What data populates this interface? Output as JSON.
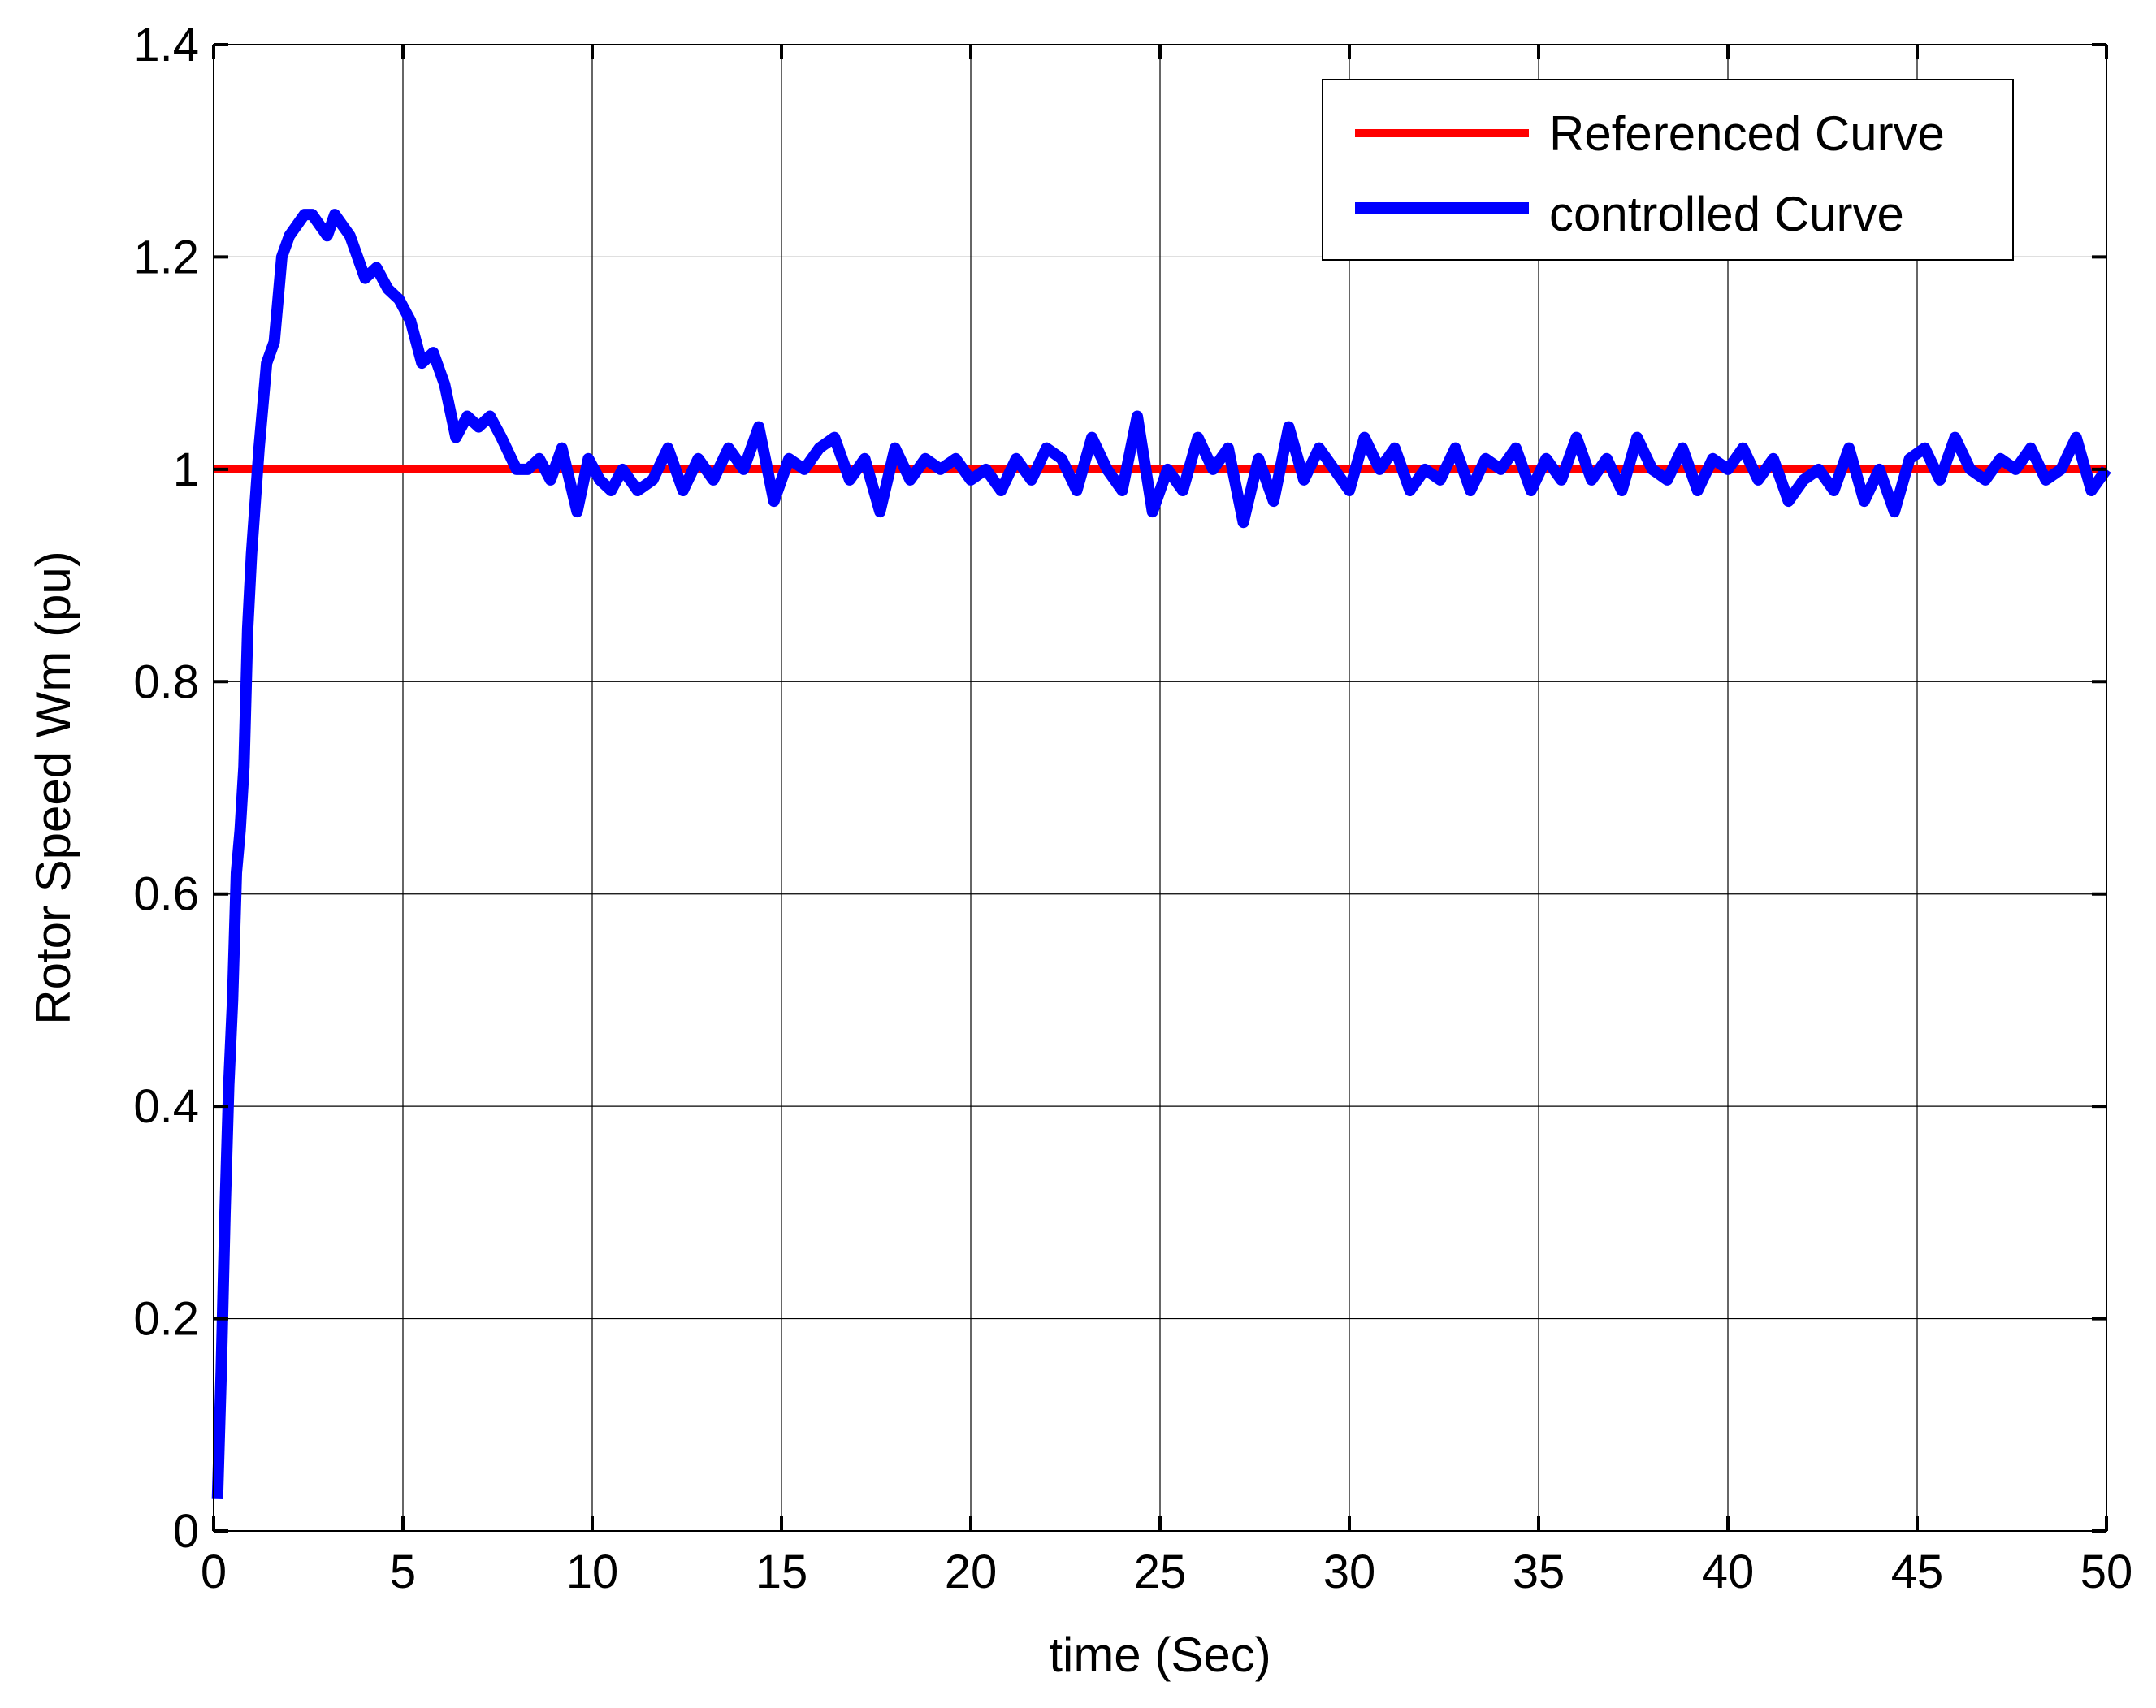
{
  "chart_data": {
    "type": "line",
    "xlabel": "time (Sec)",
    "ylabel": "Rotor Speed Wm (pu)",
    "xlim": [
      0,
      50
    ],
    "ylim": [
      0,
      1.4
    ],
    "xticks": [
      0,
      5,
      10,
      15,
      20,
      25,
      30,
      35,
      40,
      45,
      50
    ],
    "yticks": [
      0,
      0.2,
      0.4,
      0.6,
      0.8,
      1,
      1.2,
      1.4
    ],
    "xtick_labels": [
      "0",
      "5",
      "10",
      "15",
      "20",
      "25",
      "30",
      "35",
      "40",
      "45",
      "50"
    ],
    "ytick_labels": [
      "0",
      "0.2",
      "0.4",
      "0.6",
      "0.8",
      "1",
      "1.2",
      "1.4"
    ],
    "grid": true,
    "legend_position": "top-right",
    "series": [
      {
        "name": "Referenced Curve",
        "color": "#ff0000",
        "x": [
          0,
          50
        ],
        "y": [
          1,
          1
        ]
      },
      {
        "name": "controlled Curve",
        "color": "#0000ff",
        "x": [
          0.1,
          0.2,
          0.3,
          0.4,
          0.5,
          0.6,
          0.7,
          0.8,
          0.9,
          1.0,
          1.2,
          1.4,
          1.6,
          1.8,
          2.0,
          2.2,
          2.4,
          2.6,
          2.8,
          3.0,
          3.2,
          3.4,
          3.6,
          3.8,
          4.0,
          4.3,
          4.6,
          4.9,
          5.2,
          5.5,
          5.8,
          6.1,
          6.4,
          6.7,
          7.0,
          7.3,
          7.6,
          8.0,
          8.3,
          8.6,
          8.9,
          9.2,
          9.6,
          9.9,
          10.2,
          10.5,
          10.8,
          11.2,
          11.6,
          12.0,
          12.4,
          12.8,
          13.2,
          13.6,
          14.0,
          14.4,
          14.8,
          15.2,
          15.6,
          16.0,
          16.4,
          16.8,
          17.2,
          17.6,
          18.0,
          18.4,
          18.8,
          19.2,
          19.6,
          20.0,
          20.4,
          20.8,
          21.2,
          21.6,
          22.0,
          22.4,
          22.8,
          23.2,
          23.6,
          24.0,
          24.4,
          24.8,
          25.2,
          25.6,
          26.0,
          26.4,
          26.8,
          27.2,
          27.6,
          28.0,
          28.4,
          28.8,
          29.2,
          29.6,
          30.0,
          30.4,
          30.8,
          31.2,
          31.6,
          32.0,
          32.4,
          32.8,
          33.2,
          33.6,
          34.0,
          34.4,
          34.8,
          35.2,
          35.6,
          36.0,
          36.4,
          36.8,
          37.2,
          37.6,
          38.0,
          38.4,
          38.8,
          39.2,
          39.6,
          40.0,
          40.4,
          40.8,
          41.2,
          41.6,
          42.0,
          42.4,
          42.8,
          43.2,
          43.6,
          44.0,
          44.4,
          44.8,
          45.2,
          45.6,
          46.0,
          46.4,
          46.8,
          47.2,
          47.6,
          48.0,
          48.4,
          48.8,
          49.2,
          49.6,
          50.0
        ],
        "y": [
          0.03,
          0.15,
          0.3,
          0.42,
          0.5,
          0.62,
          0.66,
          0.72,
          0.85,
          0.92,
          1.02,
          1.1,
          1.12,
          1.2,
          1.22,
          1.23,
          1.24,
          1.24,
          1.23,
          1.22,
          1.24,
          1.23,
          1.22,
          1.2,
          1.18,
          1.19,
          1.17,
          1.16,
          1.14,
          1.1,
          1.11,
          1.08,
          1.03,
          1.05,
          1.04,
          1.05,
          1.03,
          1.0,
          1.0,
          1.01,
          0.99,
          1.02,
          0.96,
          1.01,
          0.99,
          0.98,
          1.0,
          0.98,
          0.99,
          1.02,
          0.98,
          1.01,
          0.99,
          1.02,
          1.0,
          1.04,
          0.97,
          1.01,
          1.0,
          1.02,
          1.03,
          0.99,
          1.01,
          0.96,
          1.02,
          0.99,
          1.01,
          1.0,
          1.01,
          0.99,
          1.0,
          0.98,
          1.01,
          0.99,
          1.02,
          1.01,
          0.98,
          1.03,
          1.0,
          0.98,
          1.05,
          0.96,
          1.0,
          0.98,
          1.03,
          1.0,
          1.02,
          0.95,
          1.01,
          0.97,
          1.04,
          0.99,
          1.02,
          1.0,
          0.98,
          1.03,
          1.0,
          1.02,
          0.98,
          1.0,
          0.99,
          1.02,
          0.98,
          1.01,
          1.0,
          1.02,
          0.98,
          1.01,
          0.99,
          1.03,
          0.99,
          1.01,
          0.98,
          1.03,
          1.0,
          0.99,
          1.02,
          0.98,
          1.01,
          1.0,
          1.02,
          0.99,
          1.01,
          0.97,
          0.99,
          1.0,
          0.98,
          1.02,
          0.97,
          1.0,
          0.96,
          1.01,
          1.02,
          0.99,
          1.03,
          1.0,
          0.99,
          1.01,
          1.0,
          1.02,
          0.99,
          1.0,
          1.03,
          0.98,
          1.0
        ]
      }
    ]
  }
}
